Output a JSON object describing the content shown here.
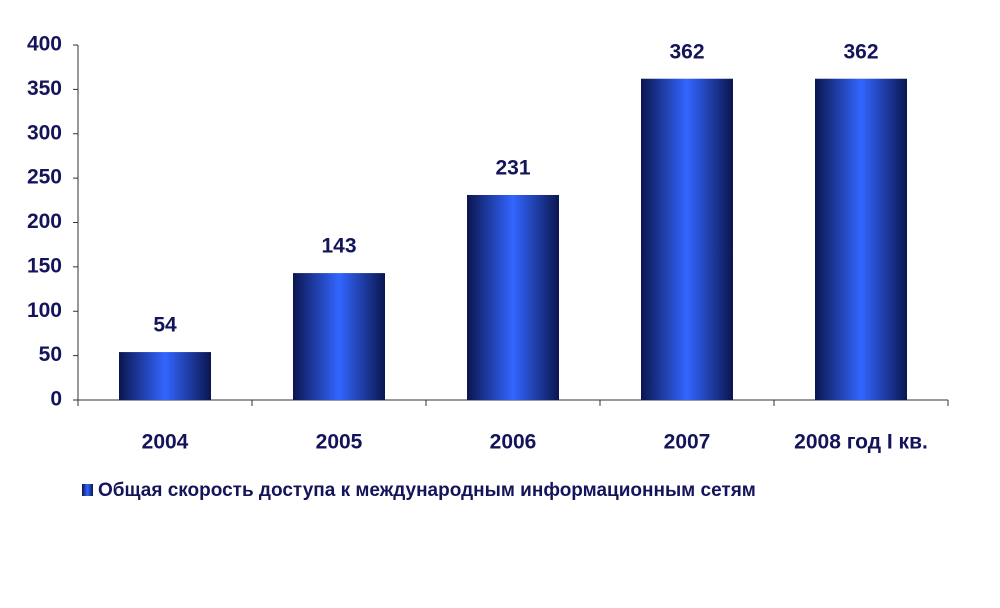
{
  "chart_data": {
    "type": "bar",
    "categories": [
      "2004",
      "2005",
      "2006",
      "2007",
      "2008 год I кв."
    ],
    "series": [
      {
        "name": "Общая скорость доступа к международным информационным сетям",
        "color": "#3366ff",
        "values": [
          54,
          143,
          231,
          362,
          362
        ]
      }
    ],
    "ylim": [
      0,
      400
    ],
    "yticks": [
      0,
      50,
      100,
      150,
      200,
      250,
      300,
      350,
      400
    ],
    "grid": false,
    "legend": "bottom"
  }
}
